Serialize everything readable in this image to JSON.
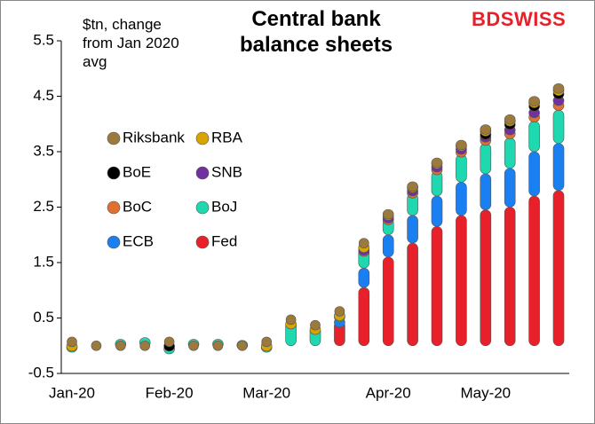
{
  "chart_data": {
    "type": "stacked-dots",
    "title": "Central bank balance sheets",
    "y_label": "$tn, change from Jan 2020 avg",
    "logo": "BDSWISS",
    "categories": [
      "Jan-20",
      null,
      null,
      null,
      "Feb-20",
      null,
      null,
      null,
      "Mar-20",
      null,
      null,
      null,
      null,
      "Apr-20",
      null,
      null,
      null,
      "May-20",
      null,
      null,
      null
    ],
    "ylim": [
      -0.5,
      5.5
    ],
    "yticks": [
      -0.5,
      0.5,
      1.5,
      2.5,
      3.5,
      4.5,
      5.5
    ],
    "series": [
      {
        "name": "Riksbank",
        "color": "#9c7a3c",
        "values": [
          0,
          0,
          0,
          0,
          0,
          0,
          0,
          0,
          0,
          0,
          0,
          0,
          0,
          0.02,
          0.02,
          0.02,
          0.02,
          0.03,
          0.03,
          0.03,
          0.04
        ]
      },
      {
        "name": "RBA",
        "color": "#d9a400",
        "values": [
          0.02,
          0,
          0,
          0,
          0,
          0,
          0,
          0,
          0.02,
          0.02,
          0.02,
          0.02,
          0.05,
          0.05,
          0.06,
          0.06,
          0.06,
          0.06,
          0.06,
          0.06,
          0.06
        ]
      },
      {
        "name": "BoE",
        "color": "#000000",
        "values": [
          0,
          0,
          0,
          0,
          0.05,
          0,
          0,
          0,
          0,
          0,
          0,
          0,
          0,
          0,
          0,
          0,
          0,
          0.05,
          0.1,
          0.12,
          0.12
        ]
      },
      {
        "name": "SNB",
        "color": "#7030a0",
        "values": [
          0,
          0,
          0,
          0,
          0,
          0,
          0,
          0,
          0,
          0,
          0,
          0,
          0.02,
          0.03,
          0.04,
          0.05,
          0.05,
          0.06,
          0.07,
          0.08,
          0.09
        ]
      },
      {
        "name": "BoC",
        "color": "#e07030",
        "values": [
          0,
          0,
          0,
          0,
          0,
          0,
          0,
          0,
          0,
          0,
          0,
          0,
          0.03,
          0.05,
          0.08,
          0.1,
          0.12,
          0.13,
          0.15,
          0.15,
          0.16
        ]
      },
      {
        "name": "BoJ",
        "color": "#20d8b0",
        "values": [
          0.05,
          0,
          -0.05,
          -0.02,
          0.02,
          -0.05,
          -0.05,
          -0.07,
          0.05,
          0.45,
          0.35,
          0.1,
          0.35,
          0.3,
          0.4,
          0.45,
          0.5,
          0.55,
          0.55,
          0.55,
          0.6
        ]
      },
      {
        "name": "ECB",
        "color": "#1a7ff0",
        "values": [
          0,
          0,
          0,
          0,
          0,
          0,
          0,
          0,
          0,
          0,
          0,
          0.05,
          0.35,
          0.4,
          0.5,
          0.55,
          0.6,
          0.65,
          0.7,
          0.8,
          0.85
        ]
      },
      {
        "name": "Fed",
        "color": "#e8202a",
        "values": [
          0,
          0,
          0,
          0,
          0,
          0,
          0,
          0,
          0,
          0,
          0,
          0.45,
          1.05,
          1.6,
          1.85,
          2.15,
          2.35,
          2.45,
          2.5,
          2.7,
          2.8
        ]
      }
    ]
  }
}
